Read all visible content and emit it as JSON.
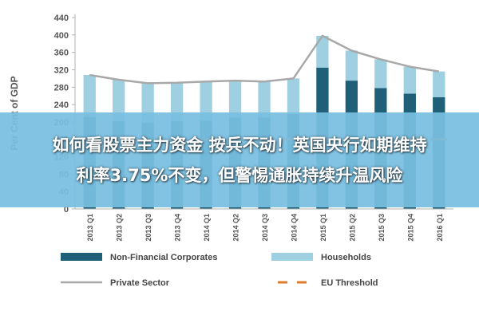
{
  "chart_data": {
    "type": "bar",
    "stacked": true,
    "ylabel": "Per Cent of GDP",
    "ylim": [
      0,
      440
    ],
    "yticks": [
      0,
      40,
      80,
      120,
      160,
      200,
      240,
      280,
      320,
      360,
      400,
      440
    ],
    "categories": [
      "2013 Q1",
      "2013 Q2",
      "2013 Q3",
      "2013 Q4",
      "2014 Q1",
      "2014 Q2",
      "2014 Q3",
      "2014 Q4",
      "2015 Q1",
      "2015 Q2",
      "2015 Q3",
      "2015 Q4",
      "2016 Q1"
    ],
    "series": [
      {
        "name": "Non-Financial Corporates",
        "kind": "bar",
        "color": "#1f5f78",
        "values": [
          212,
          202,
          198,
          202,
          203,
          210,
          210,
          218,
          325,
          295,
          278,
          265,
          257
        ]
      },
      {
        "name": "Households",
        "kind": "bar",
        "color": "#9fd0e2",
        "values": [
          96,
          95,
          91,
          88,
          90,
          85,
          83,
          82,
          73,
          69,
          66,
          62,
          59
        ]
      },
      {
        "name": "Private Sector",
        "kind": "line",
        "color": "#a8a8a8",
        "values": [
          308,
          297,
          289,
          290,
          293,
          295,
          293,
          300,
          398,
          364,
          344,
          327,
          316
        ]
      },
      {
        "name": "EU Threshold",
        "kind": "dash",
        "color": "#e07b2a",
        "values": [
          160,
          160,
          160,
          160,
          160,
          160,
          160,
          160,
          160,
          160,
          160,
          160,
          160
        ]
      }
    ],
    "grid": false,
    "legend_placement": "bottom"
  },
  "banner": {
    "line1": "如何看股票主力资金 按兵不动！英国央行如期维持",
    "line2": "利率3.75%不变，但警惕通胀持续升温风险"
  }
}
